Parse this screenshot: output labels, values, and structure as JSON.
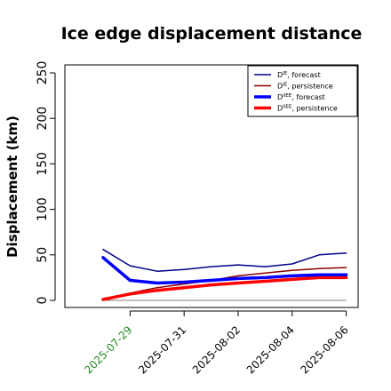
{
  "chart_data": {
    "type": "line",
    "title": "Ice edge displacement distance",
    "ylabel": "Displacement (km)",
    "xlabel": "",
    "ylim": [
      0,
      260
    ],
    "yticks": [
      0,
      50,
      100,
      150,
      200,
      250
    ],
    "grid": false,
    "legend_position": "top-right",
    "x": [
      "2025-07-29",
      "2025-07-30",
      "2025-07-31",
      "2025-08-01",
      "2025-08-02",
      "2025-08-03",
      "2025-08-04",
      "2025-08-05",
      "2025-08-06"
    ],
    "xtick_labels": [
      "2025-07-29",
      "2025-07-31",
      "2025-08-02",
      "2025-08-04",
      "2025-08-06"
    ],
    "xtick_colors": [
      "#228b22",
      "#000000",
      "#000000",
      "#000000",
      "#000000"
    ],
    "x_start_label": "2025-07-28",
    "series": [
      {
        "name": "DIE, forecast",
        "color": "#00008b",
        "width": 1.5,
        "x": [
          "2025-07-28",
          "2025-07-29",
          "2025-07-30",
          "2025-07-31",
          "2025-08-01",
          "2025-08-02",
          "2025-08-03",
          "2025-08-04",
          "2025-08-05",
          "2025-08-06"
        ],
        "values": [
          56,
          38,
          32,
          34,
          37,
          39,
          37,
          40,
          50,
          52
        ]
      },
      {
        "name": "DIE, persistence",
        "color": "#8b0000",
        "width": 1.5,
        "x": [
          "2025-07-28",
          "2025-07-29",
          "2025-07-30",
          "2025-07-31",
          "2025-08-01",
          "2025-08-02",
          "2025-08-03",
          "2025-08-04",
          "2025-08-05",
          "2025-08-06"
        ],
        "values": [
          1,
          8,
          14,
          18,
          22,
          27,
          30,
          33,
          35,
          36
        ]
      },
      {
        "name": "DIIEE, forecast",
        "color": "#0000ff",
        "width": 3.5,
        "x": [
          "2025-07-28",
          "2025-07-29",
          "2025-07-30",
          "2025-07-31",
          "2025-08-01",
          "2025-08-02",
          "2025-08-03",
          "2025-08-04",
          "2025-08-05",
          "2025-08-06"
        ],
        "values": [
          47,
          22,
          19,
          20,
          22,
          24,
          25,
          27,
          28,
          28
        ]
      },
      {
        "name": "DIIEE, persistence",
        "color": "#ff0000",
        "width": 3.5,
        "x": [
          "2025-07-28",
          "2025-07-29",
          "2025-07-30",
          "2025-07-31",
          "2025-08-01",
          "2025-08-02",
          "2025-08-03",
          "2025-08-04",
          "2025-08-05",
          "2025-08-06"
        ],
        "values": [
          1,
          7,
          11,
          14,
          17,
          19,
          21,
          23,
          25,
          25
        ]
      }
    ],
    "reference_line": {
      "y": 0,
      "color": "#808080"
    },
    "legend": [
      {
        "base": "D",
        "sup": "IE",
        "suffix": ", forecast",
        "color": "#00008b",
        "width": 1.5
      },
      {
        "base": "D",
        "sup": "IE",
        "suffix": ", persistence",
        "color": "#8b0000",
        "width": 1.5
      },
      {
        "base": "D",
        "sup": "IIEE",
        "suffix": ", forecast",
        "color": "#0000ff",
        "width": 3.5
      },
      {
        "base": "D",
        "sup": "IIEE",
        "suffix": ", persistence",
        "color": "#ff0000",
        "width": 3.5
      }
    ]
  }
}
